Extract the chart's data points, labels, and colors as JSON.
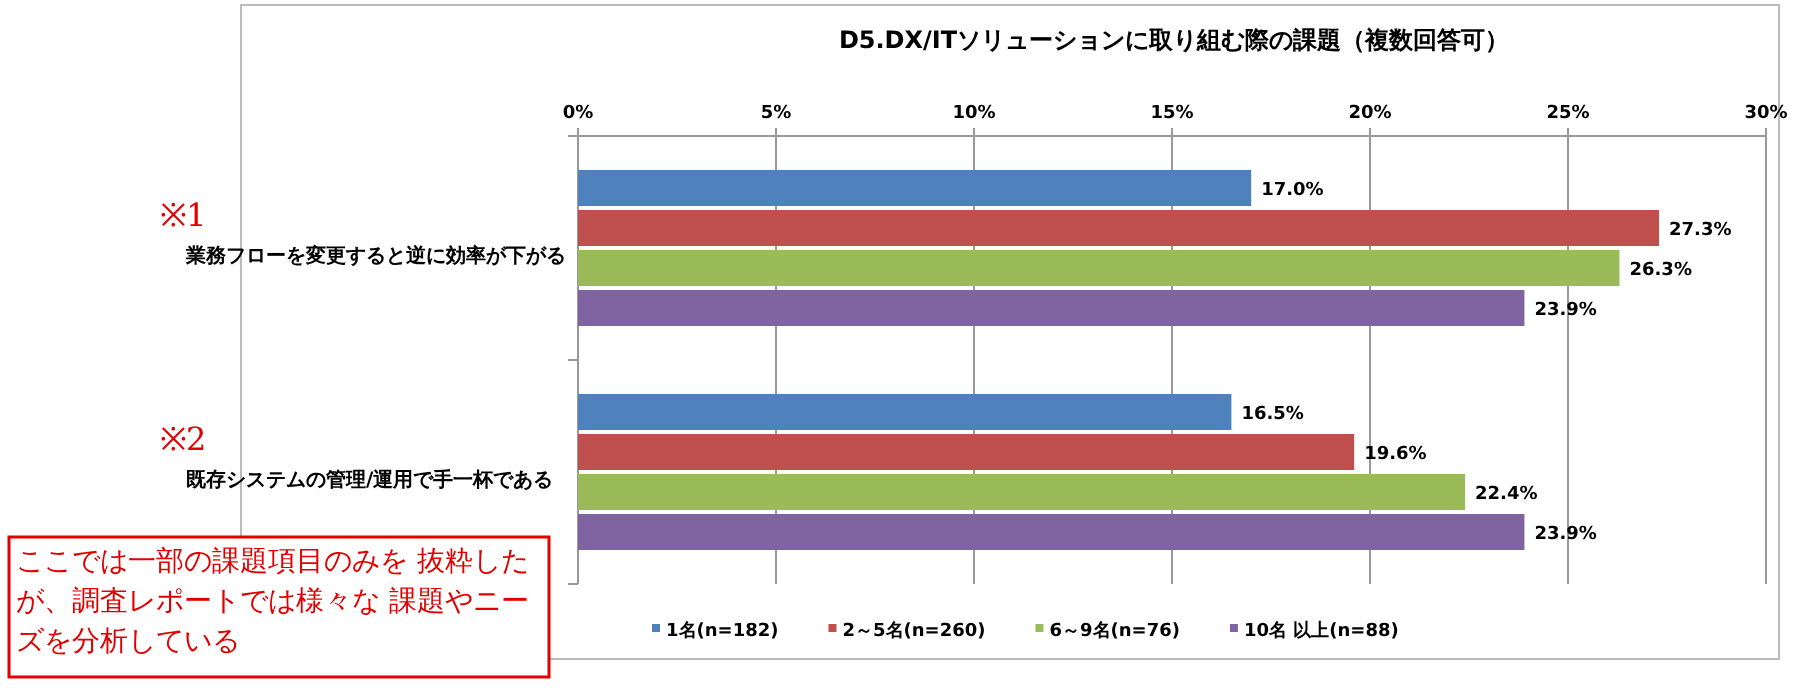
{
  "chart_data": {
    "type": "bar",
    "orientation": "horizontal",
    "title": "D5.DX/ITソリューションに取り組む際の課題（複数回答可）",
    "categories": [
      "業務フローを変更すると逆に効率が下がる",
      "既存システムの管理/運用で手一杯である"
    ],
    "series": [
      {
        "name": "1名(n=182)",
        "color": "#4f81bd",
        "values": [
          17.0,
          16.5
        ],
        "value_labels": [
          "17.0%",
          "16.5%"
        ]
      },
      {
        "name": "2～5名(n=260)",
        "color": "#c0504d",
        "values": [
          27.3,
          19.6
        ],
        "value_labels": [
          "27.3%",
          "19.6%"
        ]
      },
      {
        "name": "6～9名(n=76)",
        "color": "#9bbb59",
        "values": [
          26.3,
          22.4
        ],
        "value_labels": [
          "26.3%",
          "22.4%"
        ]
      },
      {
        "name": "10名 以上(n=88)",
        "color": "#8064a2",
        "values": [
          23.9,
          23.9
        ],
        "value_labels": [
          "23.9%",
          "23.9%"
        ]
      }
    ],
    "xlim": [
      0,
      30
    ],
    "xticks": [
      {
        "value": 0,
        "label": "0%"
      },
      {
        "value": 5,
        "label": "5%"
      },
      {
        "value": 10,
        "label": "10%"
      },
      {
        "value": 15,
        "label": "15%"
      },
      {
        "value": 20,
        "label": "20%"
      },
      {
        "value": 25,
        "label": "25%"
      },
      {
        "value": 30,
        "label": "30%"
      }
    ],
    "grid": "x",
    "legend": "bottom",
    "annotations": [
      "※1",
      "※2",
      "ここでは一部の課題項目のみを 抜粋したが、調査レポートでは様々な 課題やニーズを分析している"
    ]
  }
}
